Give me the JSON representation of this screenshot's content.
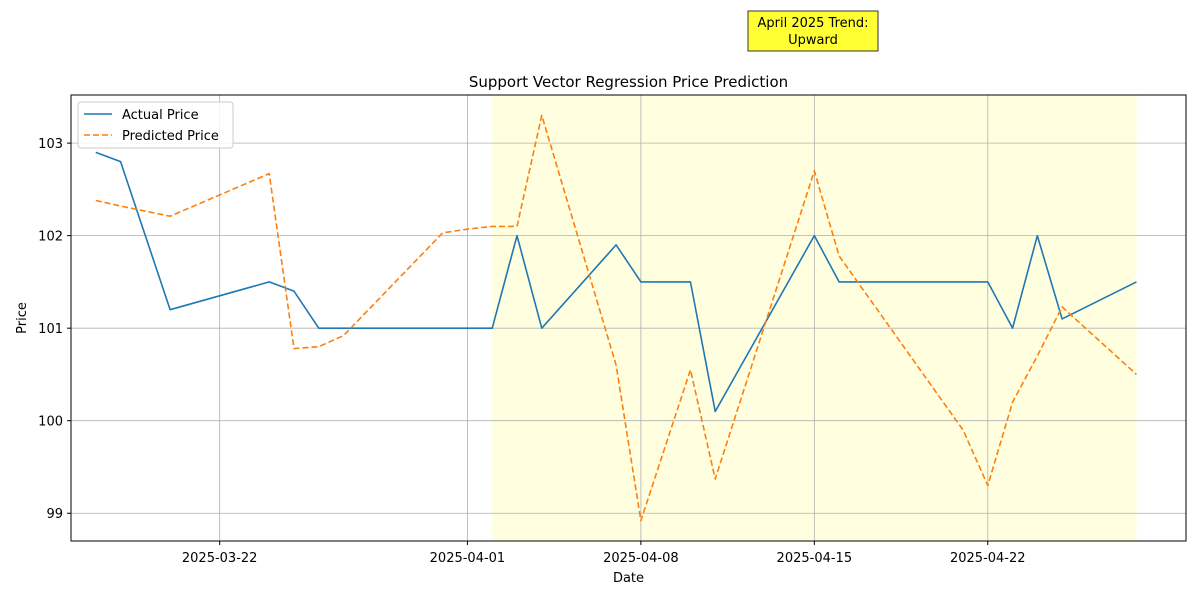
{
  "chart_data": {
    "type": "line",
    "title": "Support Vector Regression Price Prediction",
    "xlabel": "Date",
    "ylabel": "Price",
    "xlim": [
      "2025-03-16",
      "2025-04-30"
    ],
    "ylim": [
      98.7,
      103.52
    ],
    "grid": true,
    "legend_position": "upper-left",
    "x_ticks": [
      "2025-03-22",
      "2025-04-01",
      "2025-04-08",
      "2025-04-15",
      "2025-04-22"
    ],
    "y_ticks": [
      99,
      100,
      101,
      102,
      103
    ],
    "highlight_region": {
      "start": "2025-04-02",
      "end": "2025-04-28",
      "color": "#ffffe0"
    },
    "annotation": {
      "lines": [
        "April 2025 Trend:",
        "Upward"
      ],
      "background": "#ffff33"
    },
    "x": [
      "2025-03-17",
      "2025-03-18",
      "2025-03-20",
      "2025-03-24",
      "2025-03-25",
      "2025-03-26",
      "2025-03-27",
      "2025-03-31",
      "2025-04-01",
      "2025-04-02",
      "2025-04-03",
      "2025-04-04",
      "2025-04-07",
      "2025-04-08",
      "2025-04-10",
      "2025-04-11",
      "2025-04-15",
      "2025-04-16",
      "2025-04-21",
      "2025-04-22",
      "2025-04-23",
      "2025-04-24",
      "2025-04-25",
      "2025-04-28"
    ],
    "series": [
      {
        "name": "Actual Price",
        "color": "#1f77b4",
        "style": "solid",
        "values": [
          102.9,
          102.8,
          101.2,
          101.5,
          101.4,
          101.0,
          101.0,
          101.0,
          101.0,
          101.0,
          102.0,
          101.0,
          101.9,
          101.5,
          101.5,
          100.1,
          102.0,
          101.5,
          101.5,
          101.5,
          101.0,
          102.0,
          101.1,
          101.5
        ]
      },
      {
        "name": "Predicted Price",
        "color": "#ff7f0e",
        "style": "dashed",
        "values": [
          102.38,
          102.32,
          102.21,
          102.67,
          100.78,
          100.8,
          100.92,
          102.03,
          102.07,
          102.1,
          102.1,
          103.3,
          100.6,
          98.92,
          100.55,
          99.37,
          102.7,
          101.78,
          99.9,
          99.3,
          100.2,
          100.7,
          101.23,
          100.5
        ]
      }
    ]
  }
}
